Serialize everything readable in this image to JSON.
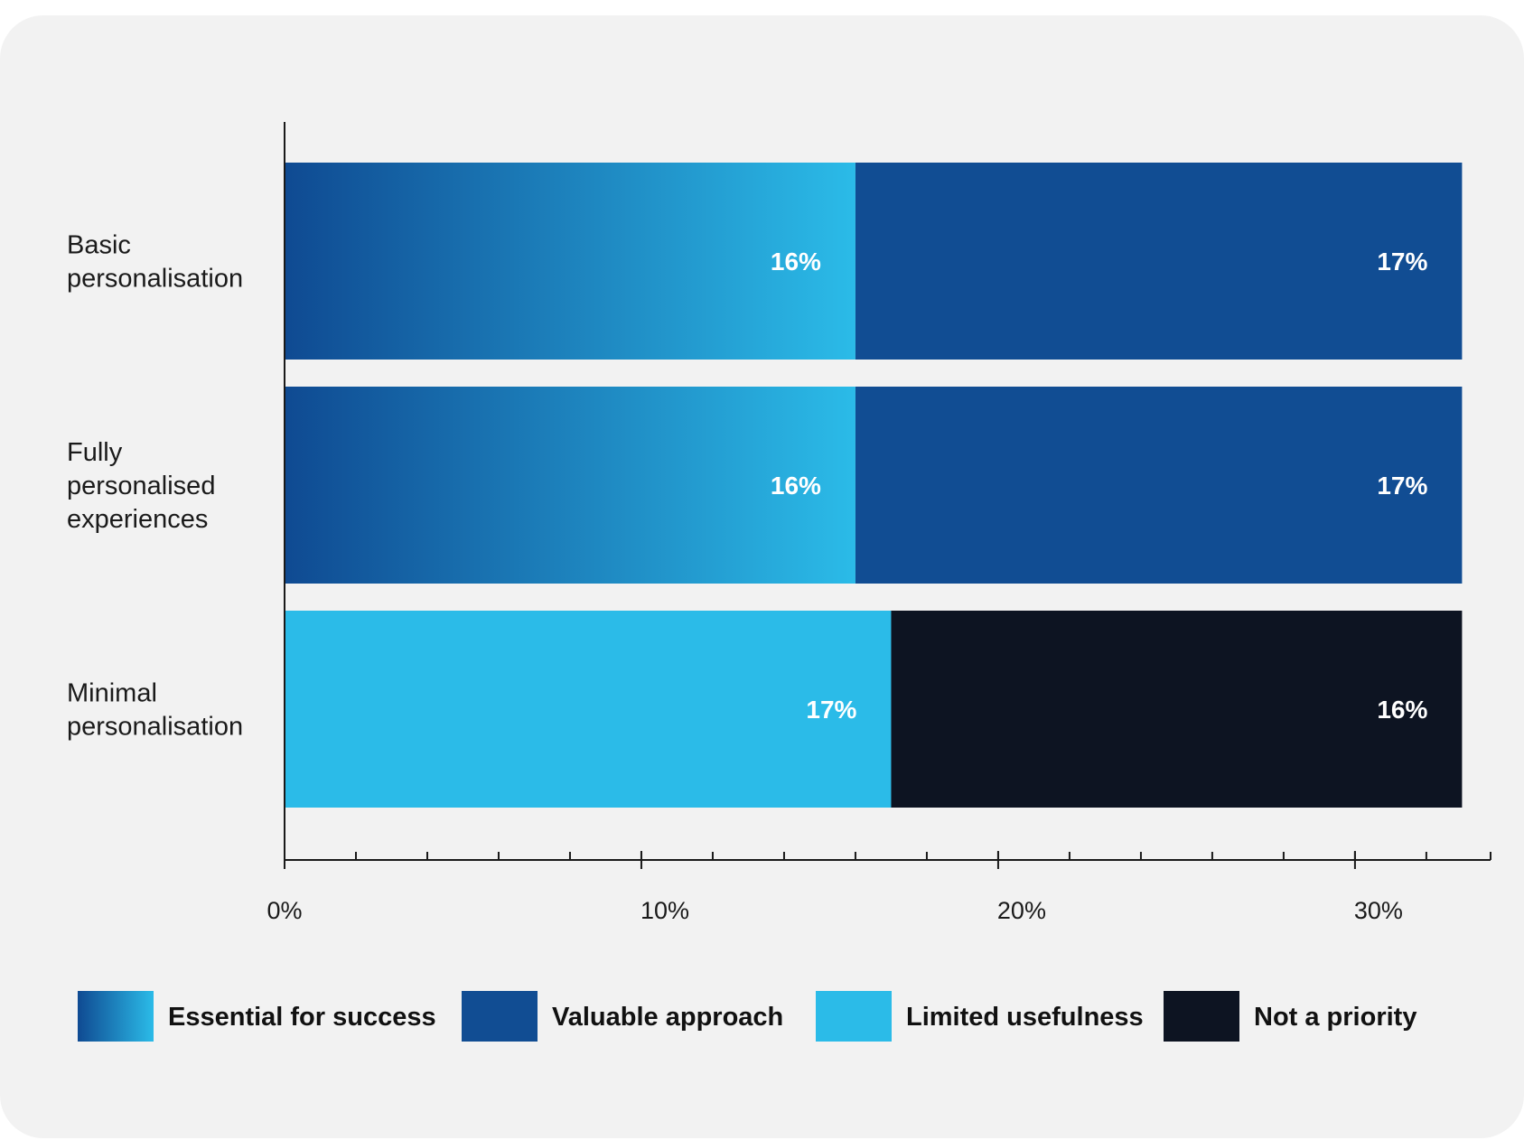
{
  "chart_data": {
    "type": "bar",
    "orientation": "horizontal",
    "stacked": true,
    "categories": [
      [
        "Basic",
        "personalisation"
      ],
      [
        "Fully",
        "personalised",
        "experiences"
      ],
      [
        "Minimal",
        "personalisation"
      ]
    ],
    "series": [
      {
        "name": "Essential for success",
        "values": [
          16,
          16,
          0
        ],
        "color_start": "#0f4a92",
        "color_end": "#2bbbe8",
        "gradient": true
      },
      {
        "name": "Valuable approach",
        "values": [
          17,
          17,
          0
        ],
        "color": "#114d93"
      },
      {
        "name": "Limited usefulness",
        "values": [
          0,
          0,
          17
        ],
        "color": "#2bbbe8"
      },
      {
        "name": "Not a priority",
        "values": [
          0,
          0,
          16
        ],
        "color": "#0d1422"
      }
    ],
    "data_labels": [
      [
        "16%",
        "17%"
      ],
      [
        "16%",
        "17%"
      ],
      [
        "17%",
        "16%"
      ]
    ],
    "x_ticks": [
      {
        "value": 0,
        "label": "0%"
      },
      {
        "value": 10,
        "label": "10%"
      },
      {
        "value": 20,
        "label": "20%"
      },
      {
        "value": 30,
        "label": "30%"
      }
    ],
    "xlim": [
      0,
      33.8
    ],
    "minor_tick_step": 2,
    "title": "",
    "xlabel": "",
    "ylabel": "",
    "grid": false,
    "legend_position": "bottom"
  }
}
